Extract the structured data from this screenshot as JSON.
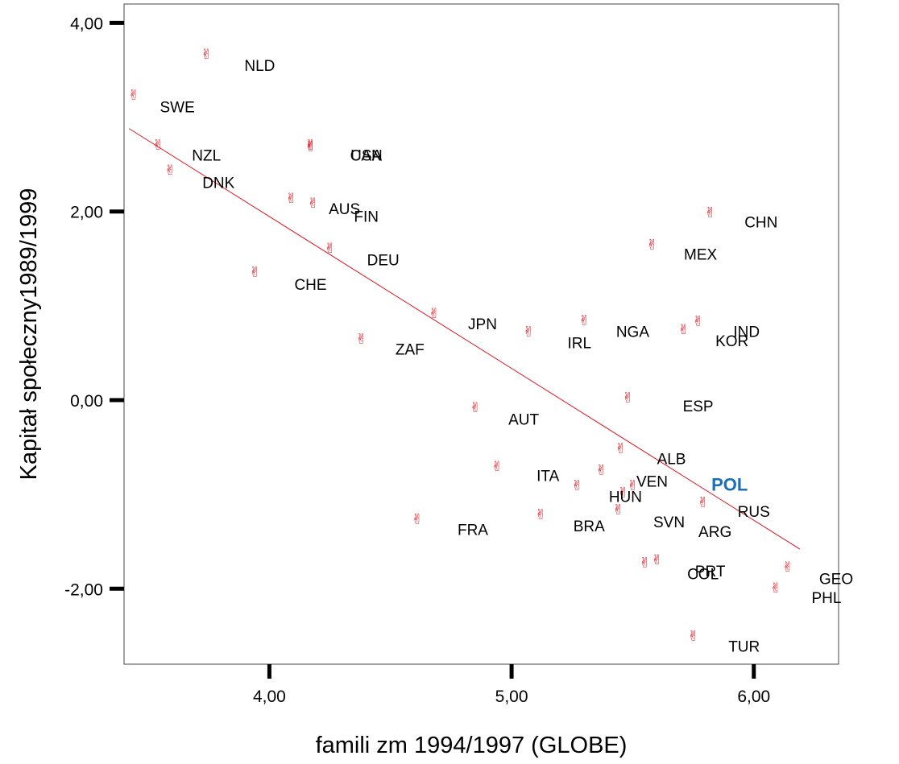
{
  "chart_data": {
    "type": "scatter",
    "xlabel": "famili zm 1994/1997 (GLOBE)",
    "ylabel": "Kapitał społeczny1989/1999",
    "xlim": [
      3.4,
      6.35
    ],
    "ylim": [
      -2.8,
      4.2
    ],
    "x_ticks": [
      4,
      5,
      6
    ],
    "x_tick_labels": [
      "4,00",
      "5,00",
      "6,00"
    ],
    "y_ticks": [
      -2,
      0,
      2,
      4
    ],
    "y_tick_labels": [
      "-2,00",
      "0,00",
      "2,00",
      "4,00"
    ],
    "marker_glyph": "✌",
    "marker_color": "#e0141e",
    "fit_line_color": "#e0141e",
    "highlight_color": "#1a6fb5",
    "fit_line": {
      "x": [
        3.42,
        6.19
      ],
      "y": [
        2.88,
        -1.58
      ]
    },
    "points": [
      {
        "x": 3.44,
        "y": 3.25
      },
      {
        "x": 3.74,
        "y": 3.68
      },
      {
        "x": 3.54,
        "y": 2.72
      },
      {
        "x": 3.59,
        "y": 2.45
      },
      {
        "x": 4.17,
        "y": 2.72
      },
      {
        "x": 4.17,
        "y": 2.7
      },
      {
        "x": 4.09,
        "y": 2.15
      },
      {
        "x": 4.18,
        "y": 2.1
      },
      {
        "x": 4.25,
        "y": 1.62
      },
      {
        "x": 3.94,
        "y": 1.37
      },
      {
        "x": 4.38,
        "y": 0.66
      },
      {
        "x": 4.68,
        "y": 0.93
      },
      {
        "x": 4.85,
        "y": -0.07
      },
      {
        "x": 5.07,
        "y": 0.74
      },
      {
        "x": 5.3,
        "y": 0.86
      },
      {
        "x": 4.94,
        "y": -0.69
      },
      {
        "x": 4.61,
        "y": -1.25
      },
      {
        "x": 5.12,
        "y": -1.2
      },
      {
        "x": 5.27,
        "y": -0.89
      },
      {
        "x": 5.37,
        "y": -0.73
      },
      {
        "x": 5.45,
        "y": -0.5
      },
      {
        "x": 5.48,
        "y": 0.04
      },
      {
        "x": 5.58,
        "y": 1.66
      },
      {
        "x": 5.46,
        "y": -0.97
      },
      {
        "x": 5.5,
        "y": -0.89
      },
      {
        "x": 5.44,
        "y": -1.15
      },
      {
        "x": 5.55,
        "y": -1.71
      },
      {
        "x": 5.6,
        "y": -1.68
      },
      {
        "x": 5.71,
        "y": 0.76
      },
      {
        "x": 5.77,
        "y": 0.85
      },
      {
        "x": 5.82,
        "y": 2.0
      },
      {
        "x": 5.79,
        "y": -1.07
      },
      {
        "x": 5.75,
        "y": -2.49
      },
      {
        "x": 6.09,
        "y": -1.98
      },
      {
        "x": 6.14,
        "y": -1.76
      }
    ],
    "labels": [
      {
        "text": "NLD",
        "x": 3.96,
        "y": 3.55
      },
      {
        "text": "SWE",
        "x": 3.62,
        "y": 3.11
      },
      {
        "text": "NZL",
        "x": 3.74,
        "y": 2.6
      },
      {
        "text": "DNK",
        "x": 3.79,
        "y": 2.31
      },
      {
        "text": "USA",
        "x": 4.4,
        "y": 2.6
      },
      {
        "text": "CAN",
        "x": 4.4,
        "y": 2.6
      },
      {
        "text": "AUS",
        "x": 4.31,
        "y": 2.03
      },
      {
        "text": "FIN",
        "x": 4.4,
        "y": 1.95
      },
      {
        "text": "DEU",
        "x": 4.47,
        "y": 1.49
      },
      {
        "text": "CHE",
        "x": 4.17,
        "y": 1.23
      },
      {
        "text": "JPN",
        "x": 4.88,
        "y": 0.81
      },
      {
        "text": "ZAF",
        "x": 4.58,
        "y": 0.54
      },
      {
        "text": "IRL",
        "x": 5.28,
        "y": 0.61
      },
      {
        "text": "NGA",
        "x": 5.5,
        "y": 0.73
      },
      {
        "text": "IND",
        "x": 5.97,
        "y": 0.73
      },
      {
        "text": "KOR",
        "x": 5.91,
        "y": 0.63
      },
      {
        "text": "MEX",
        "x": 5.78,
        "y": 1.55
      },
      {
        "text": "CHN",
        "x": 6.03,
        "y": 1.89
      },
      {
        "text": "ESP",
        "x": 5.77,
        "y": -0.06
      },
      {
        "text": "AUT",
        "x": 5.05,
        "y": -0.2
      },
      {
        "text": "ALB",
        "x": 5.66,
        "y": -0.62
      },
      {
        "text": "ITA",
        "x": 5.15,
        "y": -0.8
      },
      {
        "text": "VEN",
        "x": 5.58,
        "y": -0.86
      },
      {
        "text": "HUN",
        "x": 5.47,
        "y": -1.02
      },
      {
        "text": "POL",
        "x": 5.9,
        "y": -0.9,
        "highlight": true
      },
      {
        "text": "RUS",
        "x": 6.0,
        "y": -1.18
      },
      {
        "text": "SVN",
        "x": 5.65,
        "y": -1.29
      },
      {
        "text": "BRA",
        "x": 5.32,
        "y": -1.33
      },
      {
        "text": "ARG",
        "x": 5.84,
        "y": -1.39
      },
      {
        "text": "FRA",
        "x": 4.84,
        "y": -1.37
      },
      {
        "text": "PRT",
        "x": 5.82,
        "y": -1.81
      },
      {
        "text": "COL",
        "x": 5.79,
        "y": -1.84
      },
      {
        "text": "GEO",
        "x": 6.34,
        "y": -1.89
      },
      {
        "text": "PHL",
        "x": 6.3,
        "y": -2.09
      },
      {
        "text": "TUR",
        "x": 5.96,
        "y": -2.61
      }
    ]
  }
}
